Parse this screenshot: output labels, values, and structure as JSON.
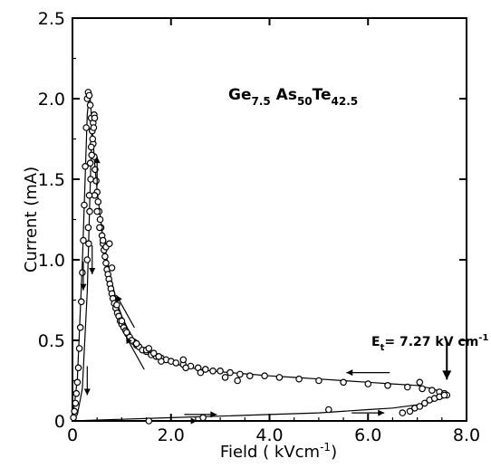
{
  "chart_data": {
    "type": "scatter",
    "title": "",
    "formula": {
      "ge": "Ge",
      "ge_sub": "7.5",
      "as": "As",
      "as_sub": "50",
      "te": "Te",
      "te_sub": "42.5"
    },
    "xlabel": {
      "text": "Field ( kVcm",
      "sup": "-1",
      "close": ")"
    },
    "ylabel": "Current (mA)",
    "xlim": [
      0,
      8.0
    ],
    "ylim": [
      0,
      2.5
    ],
    "x_ticks": [
      0,
      2.0,
      4.0,
      6.0,
      8.0
    ],
    "x_tick_labels": [
      "0",
      "2.0",
      "4.0",
      "6.0",
      "8.0"
    ],
    "y_ticks": [
      0,
      0.5,
      1.0,
      1.5,
      2.0,
      2.5
    ],
    "y_tick_labels": [
      "0",
      "0.5",
      "1.0",
      "1.5",
      "2.0",
      "2.5"
    ],
    "annotation": {
      "prefix": "E",
      "sub": "t",
      "value": "= 7.27 kV cm",
      "sup": "-1",
      "x": 7.55,
      "y": 0.25
    },
    "series": [
      {
        "kind": "points",
        "x": [
          0.02,
          0.04,
          0.06,
          0.08,
          0.1,
          0.12,
          0.14,
          0.16,
          0.18,
          0.2,
          0.22,
          0.24,
          0.26,
          0.28,
          0.3,
          0.32,
          0.34,
          0.36,
          0.38,
          0.4,
          0.42,
          0.44,
          0.46,
          0.48,
          0.5,
          0.52,
          0.54,
          0.56,
          0.58,
          0.6,
          0.62,
          0.64,
          0.66,
          0.68,
          0.7,
          0.72,
          0.74,
          0.76,
          0.78,
          0.8,
          0.82,
          0.85,
          0.88,
          0.91,
          0.94,
          0.97,
          1.0,
          1.04,
          1.08,
          1.12,
          1.16,
          1.2,
          1.25,
          1.3,
          1.35,
          1.42,
          1.5,
          1.6,
          1.7,
          1.8,
          1.9,
          2.0,
          2.1,
          2.25,
          2.4,
          2.55,
          2.7,
          2.85,
          3.0,
          3.2,
          3.4,
          3.6,
          3.9,
          4.2,
          4.6,
          5.0,
          5.5,
          6.0,
          6.4,
          6.8,
          7.1,
          7.3,
          7.45,
          7.55,
          7.6,
          0.45,
          0.5,
          0.55,
          0.62,
          0.68,
          0.75,
          0.8,
          0.9,
          1.0,
          1.1,
          1.3,
          1.5,
          1.8,
          2.3,
          3.1,
          3.35,
          7.05,
          0.3,
          0.32,
          0.34,
          0.36,
          0.38,
          0.4,
          0.42,
          0.44,
          0.33,
          0.35,
          0.37,
          0.39,
          0.41,
          0.43,
          0.45,
          1.2,
          1.3,
          1.55,
          1.65,
          1.75,
          2.25,
          2.6,
          2.7,
          5.2,
          6.7,
          6.85,
          6.95,
          7.05,
          7.15,
          7.25,
          7.35,
          7.45,
          7.55,
          1.55,
          2.65
        ],
        "y": [
          0.02,
          0.06,
          0.11,
          0.17,
          0.24,
          0.33,
          0.45,
          0.58,
          0.74,
          0.92,
          1.12,
          1.34,
          1.58,
          1.82,
          2.0,
          2.04,
          2.02,
          1.96,
          1.88,
          1.8,
          1.72,
          1.64,
          1.56,
          1.49,
          1.42,
          1.36,
          1.3,
          1.25,
          1.2,
          1.15,
          1.1,
          1.06,
          1.02,
          0.98,
          0.94,
          0.91,
          0.88,
          0.85,
          0.82,
          0.79,
          0.76,
          0.73,
          0.7,
          0.67,
          0.65,
          0.62,
          0.6,
          0.58,
          0.56,
          0.54,
          0.52,
          0.5,
          0.49,
          0.47,
          0.46,
          0.44,
          0.43,
          0.41,
          0.4,
          0.39,
          0.38,
          0.37,
          0.36,
          0.35,
          0.34,
          0.33,
          0.32,
          0.31,
          0.31,
          0.3,
          0.29,
          0.28,
          0.28,
          0.27,
          0.26,
          0.25,
          0.24,
          0.23,
          0.22,
          0.21,
          0.2,
          0.19,
          0.18,
          0.17,
          0.16,
          1.4,
          1.3,
          1.2,
          1.12,
          1.08,
          1.1,
          0.95,
          0.72,
          0.62,
          0.55,
          0.48,
          0.44,
          0.37,
          0.33,
          0.27,
          0.25,
          0.24,
          1.0,
          1.2,
          1.4,
          1.6,
          1.7,
          1.8,
          1.85,
          1.9,
          1.1,
          1.3,
          1.5,
          1.65,
          1.75,
          1.82,
          1.88,
          0.5,
          0.48,
          0.45,
          0.42,
          0.4,
          0.38,
          0.3,
          0.32,
          0.07,
          0.05,
          0.06,
          0.08,
          0.09,
          0.11,
          0.13,
          0.14,
          0.15,
          0.16,
          0.0,
          0.02
        ]
      },
      {
        "kind": "curve",
        "x": [
          0,
          0.1,
          0.2,
          0.3,
          0.35,
          0.4,
          0.45,
          0.5,
          0.6,
          0.7,
          0.8,
          0.9,
          1.0,
          1.2,
          1.4,
          1.6,
          1.8,
          2.0,
          2.4,
          2.8,
          3.2,
          3.6,
          4.0,
          4.5,
          5.0,
          5.5,
          6.0,
          6.5,
          7.0,
          7.3,
          7.5,
          7.6
        ],
        "y": [
          0,
          0.26,
          0.98,
          1.9,
          2.05,
          1.82,
          1.6,
          1.43,
          1.18,
          1.0,
          0.86,
          0.74,
          0.65,
          0.52,
          0.45,
          0.41,
          0.38,
          0.36,
          0.33,
          0.31,
          0.3,
          0.29,
          0.28,
          0.27,
          0.26,
          0.25,
          0.24,
          0.23,
          0.22,
          0.2,
          0.18,
          0.17
        ]
      },
      {
        "kind": "curve",
        "x": [
          0,
          0.1,
          0.2,
          0.3,
          0.4
        ],
        "y": [
          0,
          0.04,
          0.2,
          0.8,
          1.9
        ]
      },
      {
        "kind": "curve",
        "x": [
          0,
          1.0,
          2.0,
          3.0,
          4.0,
          5.0,
          6.0,
          6.5,
          7.0,
          7.3,
          7.5,
          7.6
        ],
        "y": [
          0,
          0.01,
          0.02,
          0.03,
          0.04,
          0.05,
          0.07,
          0.08,
          0.1,
          0.12,
          0.14,
          0.15
        ]
      }
    ],
    "arrows": [
      {
        "x": 0.5,
        "y": 1.55,
        "dir": "up"
      },
      {
        "x": 0.4,
        "y": 1.0,
        "dir": "down"
      },
      {
        "x": 0.22,
        "y": 0.9,
        "dir": "down"
      },
      {
        "x": 0.3,
        "y": 0.25,
        "dir": "down"
      },
      {
        "x": 1.0,
        "y": 0.68,
        "dir": "up-left"
      },
      {
        "x": 1.2,
        "y": 0.42,
        "dir": "up-left"
      },
      {
        "x": 6.0,
        "y": 0.3,
        "dir": "left"
      },
      {
        "x": 2.6,
        "y": 0.04,
        "dir": "right"
      },
      {
        "x": 6.0,
        "y": 0.05,
        "dir": "right"
      },
      {
        "x": 2.2,
        "y": 0.0,
        "dir": "right"
      },
      {
        "x": 7.6,
        "y": 0.38,
        "dir": "down-big"
      }
    ],
    "grid": false,
    "legend": "none"
  }
}
